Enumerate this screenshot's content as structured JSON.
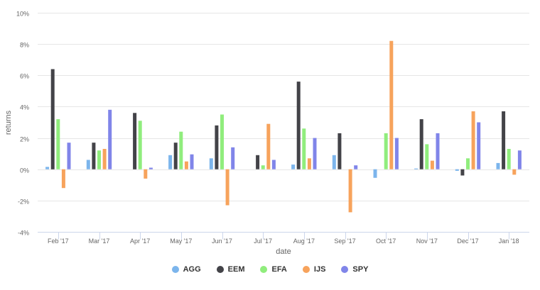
{
  "chart_data": {
    "type": "bar",
    "title": "",
    "xlabel": "date",
    "ylabel": "returns",
    "ylim": [
      -4,
      10
    ],
    "yticks": [
      -4,
      -2,
      0,
      2,
      4,
      6,
      8,
      10
    ],
    "ytick_labels": [
      "-4%",
      "-2%",
      "0%",
      "2%",
      "4%",
      "6%",
      "8%",
      "10%"
    ],
    "grid": true,
    "legend_position": "bottom",
    "categories": [
      "Feb '17",
      "Mar '17",
      "Apr '17",
      "May '17",
      "Jun '17",
      "Jul '17",
      "Aug '17",
      "Sep '17",
      "Oct '17",
      "Nov '17",
      "Dec '17",
      "Jan '18"
    ],
    "series": [
      {
        "name": "AGG",
        "color": "#7cb5ec",
        "values": [
          0.15,
          0.6,
          0.0,
          0.9,
          0.7,
          0.0,
          0.3,
          0.9,
          -0.55,
          0.05,
          -0.1,
          0.4
        ]
      },
      {
        "name": "EEM",
        "color": "#434348",
        "values": [
          6.4,
          1.7,
          3.6,
          1.7,
          2.8,
          0.9,
          5.6,
          2.3,
          0.0,
          3.2,
          -0.4,
          3.7
        ]
      },
      {
        "name": "EFA",
        "color": "#90ed7d",
        "values": [
          3.2,
          1.2,
          3.1,
          2.4,
          3.5,
          0.25,
          2.6,
          0.0,
          2.3,
          1.6,
          0.7,
          1.3
        ]
      },
      {
        "name": "IJS",
        "color": "#f7a35c",
        "values": [
          -1.2,
          1.3,
          -0.6,
          0.5,
          -2.3,
          2.9,
          0.7,
          -2.75,
          8.2,
          0.55,
          3.7,
          -0.35
        ]
      },
      {
        "name": "SPY",
        "color": "#8085e9",
        "values": [
          1.7,
          3.8,
          0.1,
          0.95,
          1.4,
          0.6,
          2.0,
          0.25,
          2.0,
          2.3,
          3.0,
          1.2
        ]
      }
    ]
  },
  "axes": {
    "x_title": "date",
    "y_title": "returns"
  },
  "legend": {
    "items": [
      {
        "label": "AGG",
        "color": "#7cb5ec"
      },
      {
        "label": "EEM",
        "color": "#434348"
      },
      {
        "label": "EFA",
        "color": "#90ed7d"
      },
      {
        "label": "IJS",
        "color": "#f7a35c"
      },
      {
        "label": "SPY",
        "color": "#8085e9"
      }
    ]
  }
}
